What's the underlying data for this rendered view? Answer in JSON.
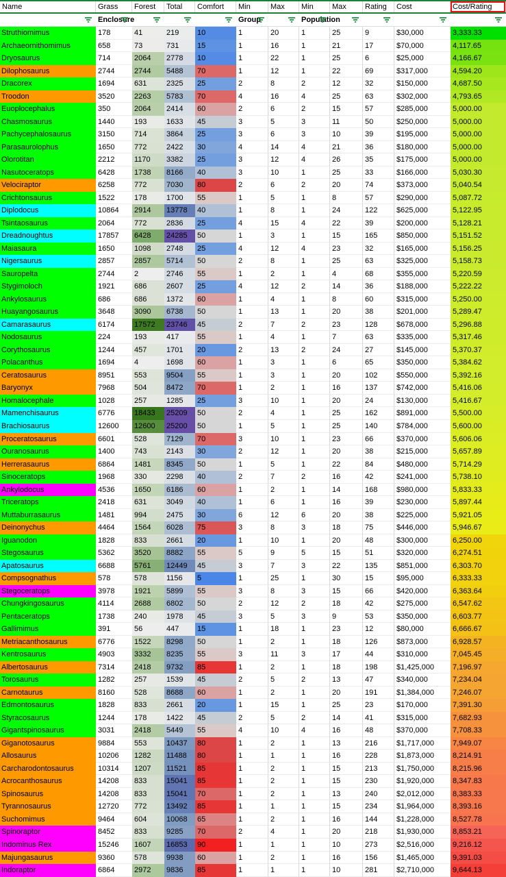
{
  "sheet": {
    "columns": [
      "Name",
      "Grass",
      "Forest",
      "Total",
      "Comfort",
      "Min",
      "Max",
      "Min",
      "Max",
      "Rating",
      "Cost",
      "Cost/Rating"
    ],
    "band_labels": {
      "enclosure": "Enclosure",
      "group": "Group",
      "population": "Population"
    },
    "selected_header": "Cost/Rating",
    "colors": {
      "name_green": "#00ff00",
      "name_orange": "#ff9900",
      "name_cyan": "#00ffff",
      "name_magenta": "#ff00ff",
      "filter_icon_green": "#1e8e3e",
      "filter_range_border_green": "#188038",
      "selection_border_red": "#ee1111",
      "gridline": "#d9d9d9"
    },
    "row_fields": [
      "name",
      "name_color",
      "grass",
      "forest",
      "total",
      "comfort",
      "group_min",
      "group_max",
      "pop_min",
      "pop_max",
      "rating",
      "cost",
      "cost_per_rating"
    ],
    "rows": [
      [
        "Struthiomimus",
        "green",
        178,
        41,
        219,
        10,
        1,
        20,
        1,
        25,
        9,
        "$30,000",
        "3,333.33"
      ],
      [
        "Archaeornithomimus",
        "green",
        658,
        73,
        731,
        15,
        1,
        16,
        1,
        21,
        17,
        "$70,000",
        "4,117.65"
      ],
      [
        "Dryosaurus",
        "green",
        714,
        2064,
        2778,
        10,
        1,
        22,
        1,
        25,
        6,
        "$25,000",
        "4,166.67"
      ],
      [
        "Dilophosaurus",
        "orange",
        2744,
        2744,
        5488,
        70,
        1,
        12,
        1,
        22,
        69,
        "$317,000",
        "4,594.20"
      ],
      [
        "Dracorex",
        "green",
        1694,
        631,
        2325,
        25,
        2,
        8,
        2,
        12,
        32,
        "$150,000",
        "4,687.50"
      ],
      [
        "Troodon",
        "orange",
        3520,
        2263,
        5783,
        70,
        4,
        16,
        4,
        25,
        63,
        "$302,000",
        "4,793.65"
      ],
      [
        "Euoplocephalus",
        "green",
        350,
        2064,
        2414,
        60,
        2,
        6,
        2,
        15,
        57,
        "$285,000",
        "5,000.00"
      ],
      [
        "Chasmosaurus",
        "green",
        1440,
        193,
        1633,
        45,
        3,
        5,
        3,
        11,
        50,
        "$250,000",
        "5,000.00"
      ],
      [
        "Pachycephalosaurus",
        "green",
        3150,
        714,
        3864,
        25,
        3,
        6,
        3,
        10,
        39,
        "$195,000",
        "5,000.00"
      ],
      [
        "Parasaurolophus",
        "green",
        1650,
        772,
        2422,
        30,
        4,
        14,
        4,
        21,
        36,
        "$180,000",
        "5,000.00"
      ],
      [
        "Olorotitan",
        "green",
        2212,
        1170,
        3382,
        25,
        3,
        12,
        4,
        26,
        35,
        "$175,000",
        "5,000.00"
      ],
      [
        "Nasutoceratops",
        "green",
        6428,
        1738,
        8166,
        40,
        3,
        10,
        1,
        25,
        33,
        "$166,000",
        "5,030.30"
      ],
      [
        "Velociraptor",
        "orange",
        6258,
        772,
        7030,
        80,
        2,
        6,
        2,
        20,
        74,
        "$373,000",
        "5,040.54"
      ],
      [
        "Crichtonsaurus",
        "green",
        1522,
        178,
        1700,
        55,
        1,
        5,
        1,
        8,
        57,
        "$290,000",
        "5,087.72"
      ],
      [
        "Diplodocus",
        "cyan",
        10864,
        2914,
        13778,
        40,
        1,
        8,
        1,
        24,
        122,
        "$625,000",
        "5,122.95"
      ],
      [
        "Tsintaosaurus",
        "green",
        2064,
        772,
        2836,
        25,
        4,
        15,
        4,
        22,
        39,
        "$200,000",
        "5,128.21"
      ],
      [
        "Dreadnoughtus",
        "cyan",
        17857,
        6428,
        24285,
        50,
        1,
        3,
        1,
        15,
        165,
        "$850,000",
        "5,151.52"
      ],
      [
        "Maiasaura",
        "green",
        1650,
        1098,
        2748,
        25,
        4,
        12,
        4,
        23,
        32,
        "$165,000",
        "5,156.25"
      ],
      [
        "Nigersaurus",
        "cyan",
        2857,
        2857,
        5714,
        50,
        2,
        8,
        1,
        25,
        63,
        "$325,000",
        "5,158.73"
      ],
      [
        "Sauropelta",
        "green",
        2744,
        2,
        2746,
        55,
        1,
        2,
        1,
        4,
        68,
        "$355,000",
        "5,220.59"
      ],
      [
        "Stygimoloch",
        "green",
        1921,
        686,
        2607,
        25,
        4,
        12,
        2,
        14,
        36,
        "$188,000",
        "5,222.22"
      ],
      [
        "Ankylosaurus",
        "green",
        686,
        686,
        1372,
        60,
        1,
        4,
        1,
        8,
        60,
        "$315,000",
        "5,250.00"
      ],
      [
        "Huayangosaurus",
        "green",
        3648,
        3090,
        6738,
        50,
        1,
        13,
        1,
        20,
        38,
        "$201,000",
        "5,289.47"
      ],
      [
        "Camarasaurus",
        "cyan",
        6174,
        17572,
        23746,
        45,
        2,
        7,
        2,
        23,
        128,
        "$678,000",
        "5,296.88"
      ],
      [
        "Nodosaurus",
        "green",
        224,
        193,
        417,
        55,
        1,
        4,
        1,
        7,
        63,
        "$335,000",
        "5,317.46"
      ],
      [
        "Corythosaurus",
        "green",
        1244,
        457,
        1701,
        20,
        2,
        13,
        2,
        24,
        27,
        "$145,000",
        "5,370.37"
      ],
      [
        "Polacanthus",
        "green",
        1694,
        4,
        1698,
        60,
        1,
        3,
        1,
        6,
        65,
        "$350,000",
        "5,384.62"
      ],
      [
        "Ceratosaurus",
        "orange",
        8951,
        553,
        9504,
        55,
        1,
        3,
        1,
        20,
        102,
        "$550,000",
        "5,392.16"
      ],
      [
        "Baryonyx",
        "orange",
        7968,
        504,
        8472,
        70,
        1,
        2,
        1,
        16,
        137,
        "$742,000",
        "5,416.06"
      ],
      [
        "Homalocephale",
        "green",
        1028,
        257,
        1285,
        25,
        3,
        10,
        1,
        20,
        24,
        "$130,000",
        "5,416.67"
      ],
      [
        "Mamenchisaurus",
        "cyan",
        6776,
        18433,
        25209,
        50,
        2,
        4,
        1,
        25,
        162,
        "$891,000",
        "5,500.00"
      ],
      [
        "Brachiosaurus",
        "cyan",
        12600,
        12600,
        25200,
        50,
        1,
        5,
        1,
        25,
        140,
        "$784,000",
        "5,600.00"
      ],
      [
        "Proceratosaurus",
        "orange",
        6601,
        528,
        7129,
        70,
        3,
        10,
        1,
        23,
        66,
        "$370,000",
        "5,606.06"
      ],
      [
        "Ouranosaurus",
        "green",
        1400,
        743,
        2143,
        30,
        2,
        12,
        1,
        20,
        38,
        "$215,000",
        "5,657.89"
      ],
      [
        "Herrerasaurus",
        "orange",
        6864,
        1481,
        8345,
        50,
        1,
        5,
        1,
        22,
        84,
        "$480,000",
        "5,714.29"
      ],
      [
        "Sinoceratops",
        "green",
        1968,
        330,
        2298,
        40,
        2,
        7,
        2,
        16,
        42,
        "$241,000",
        "5,738.10"
      ],
      [
        "Ankylodocus",
        "magenta",
        4536,
        1650,
        6186,
        60,
        1,
        2,
        1,
        14,
        168,
        "$980,000",
        "5,833.33"
      ],
      [
        "Triceratops",
        "green",
        2418,
        631,
        3049,
        40,
        1,
        6,
        1,
        16,
        39,
        "$230,000",
        "5,897.44"
      ],
      [
        "Muttaburrasaurus",
        "green",
        1481,
        994,
        2475,
        30,
        6,
        12,
        6,
        20,
        38,
        "$225,000",
        "5,921.05"
      ],
      [
        "Deinonychus",
        "orange",
        4464,
        1564,
        6028,
        75,
        3,
        8,
        3,
        18,
        75,
        "$446,000",
        "5,946.67"
      ],
      [
        "Iguanodon",
        "green",
        1828,
        833,
        2661,
        20,
        1,
        10,
        1,
        20,
        48,
        "$300,000",
        "6,250.00"
      ],
      [
        "Stegosaurus",
        "green",
        5362,
        3520,
        8882,
        55,
        5,
        9,
        5,
        15,
        51,
        "$320,000",
        "6,274.51"
      ],
      [
        "Apatosaurus",
        "cyan",
        6688,
        5761,
        12449,
        45,
        3,
        7,
        3,
        22,
        135,
        "$851,000",
        "6,303.70"
      ],
      [
        "Compsognathus",
        "orange",
        578,
        578,
        1156,
        5,
        1,
        25,
        1,
        30,
        15,
        "$95,000",
        "6,333.33"
      ],
      [
        "Stegoceratops",
        "magenta",
        3978,
        1921,
        5899,
        55,
        3,
        8,
        3,
        15,
        66,
        "$420,000",
        "6,363.64"
      ],
      [
        "Chungkingosaurus",
        "green",
        4114,
        2688,
        6802,
        50,
        2,
        12,
        2,
        18,
        42,
        "$275,000",
        "6,547.62"
      ],
      [
        "Pentaceratops",
        "green",
        1738,
        240,
        1978,
        45,
        3,
        5,
        3,
        9,
        53,
        "$350,000",
        "6,603.77"
      ],
      [
        "Gallimimus",
        "green",
        391,
        56,
        447,
        15,
        1,
        18,
        1,
        23,
        12,
        "$80,000",
        "6,666.67"
      ],
      [
        "Metriacanthosaurus",
        "orange",
        6776,
        1522,
        8298,
        50,
        1,
        2,
        1,
        18,
        126,
        "$873,000",
        "6,928.57"
      ],
      [
        "Kentrosaurus",
        "green",
        4903,
        3332,
        8235,
        55,
        3,
        11,
        3,
        17,
        44,
        "$310,000",
        "7,045.45"
      ],
      [
        "Albertosaurus",
        "orange",
        7314,
        2418,
        9732,
        85,
        1,
        2,
        1,
        18,
        198,
        "$1,425,000",
        "7,196.97"
      ],
      [
        "Torosaurus",
        "green",
        1282,
        257,
        1539,
        45,
        2,
        5,
        2,
        13,
        47,
        "$340,000",
        "7,234.04"
      ],
      [
        "Carnotaurus",
        "orange",
        8160,
        528,
        8688,
        60,
        1,
        2,
        1,
        20,
        191,
        "$1,384,000",
        "7,246.07"
      ],
      [
        "Edmontosaurus",
        "green",
        1828,
        833,
        2661,
        20,
        1,
        15,
        1,
        25,
        23,
        "$170,000",
        "7,391.30"
      ],
      [
        "Styracosaurus",
        "green",
        1244,
        178,
        1422,
        45,
        2,
        5,
        2,
        14,
        41,
        "$315,000",
        "7,682.93"
      ],
      [
        "Gigantspinosaurus",
        "green",
        3031,
        2418,
        5449,
        55,
        4,
        10,
        4,
        16,
        48,
        "$370,000",
        "7,708.33"
      ],
      [
        "Giganotosaurus",
        "orange",
        9884,
        553,
        10437,
        80,
        1,
        2,
        1,
        13,
        216,
        "$1,717,000",
        "7,949.07"
      ],
      [
        "Allosaurus",
        "orange",
        10206,
        1282,
        11488,
        80,
        1,
        1,
        1,
        16,
        228,
        "$1,873,000",
        "8,214.91"
      ],
      [
        "Carcharodontosaurus",
        "orange",
        10314,
        1207,
        11521,
        85,
        1,
        2,
        1,
        15,
        213,
        "$1,750,000",
        "8,215.96"
      ],
      [
        "Acrocanthosaurus",
        "orange",
        14208,
        833,
        15041,
        85,
        1,
        2,
        1,
        15,
        230,
        "$1,920,000",
        "8,347.83"
      ],
      [
        "Spinosaurus",
        "orange",
        14208,
        833,
        15041,
        70,
        1,
        2,
        1,
        13,
        240,
        "$2,012,000",
        "8,383.33"
      ],
      [
        "Tyrannosaurus",
        "orange",
        12720,
        772,
        13492,
        85,
        1,
        1,
        1,
        15,
        234,
        "$1,964,000",
        "8,393.16"
      ],
      [
        "Suchomimus",
        "orange",
        9464,
        604,
        10068,
        65,
        1,
        2,
        1,
        16,
        144,
        "$1,228,000",
        "8,527.78"
      ],
      [
        "Spinoraptor",
        "magenta",
        8452,
        833,
        9285,
        70,
        2,
        4,
        1,
        20,
        218,
        "$1,930,000",
        "8,853.21"
      ],
      [
        "Indominus Rex",
        "magenta",
        15246,
        1607,
        16853,
        90,
        1,
        1,
        1,
        10,
        273,
        "$2,516,000",
        "9,216.12"
      ],
      [
        "Majungasaurus",
        "orange",
        9360,
        578,
        9938,
        60,
        1,
        2,
        1,
        16,
        156,
        "$1,465,000",
        "9,391.03"
      ],
      [
        "Indoraptor",
        "magenta",
        6864,
        2972,
        9836,
        85,
        1,
        1,
        1,
        10,
        281,
        "$2,710,000",
        "9,644.13"
      ]
    ]
  }
}
